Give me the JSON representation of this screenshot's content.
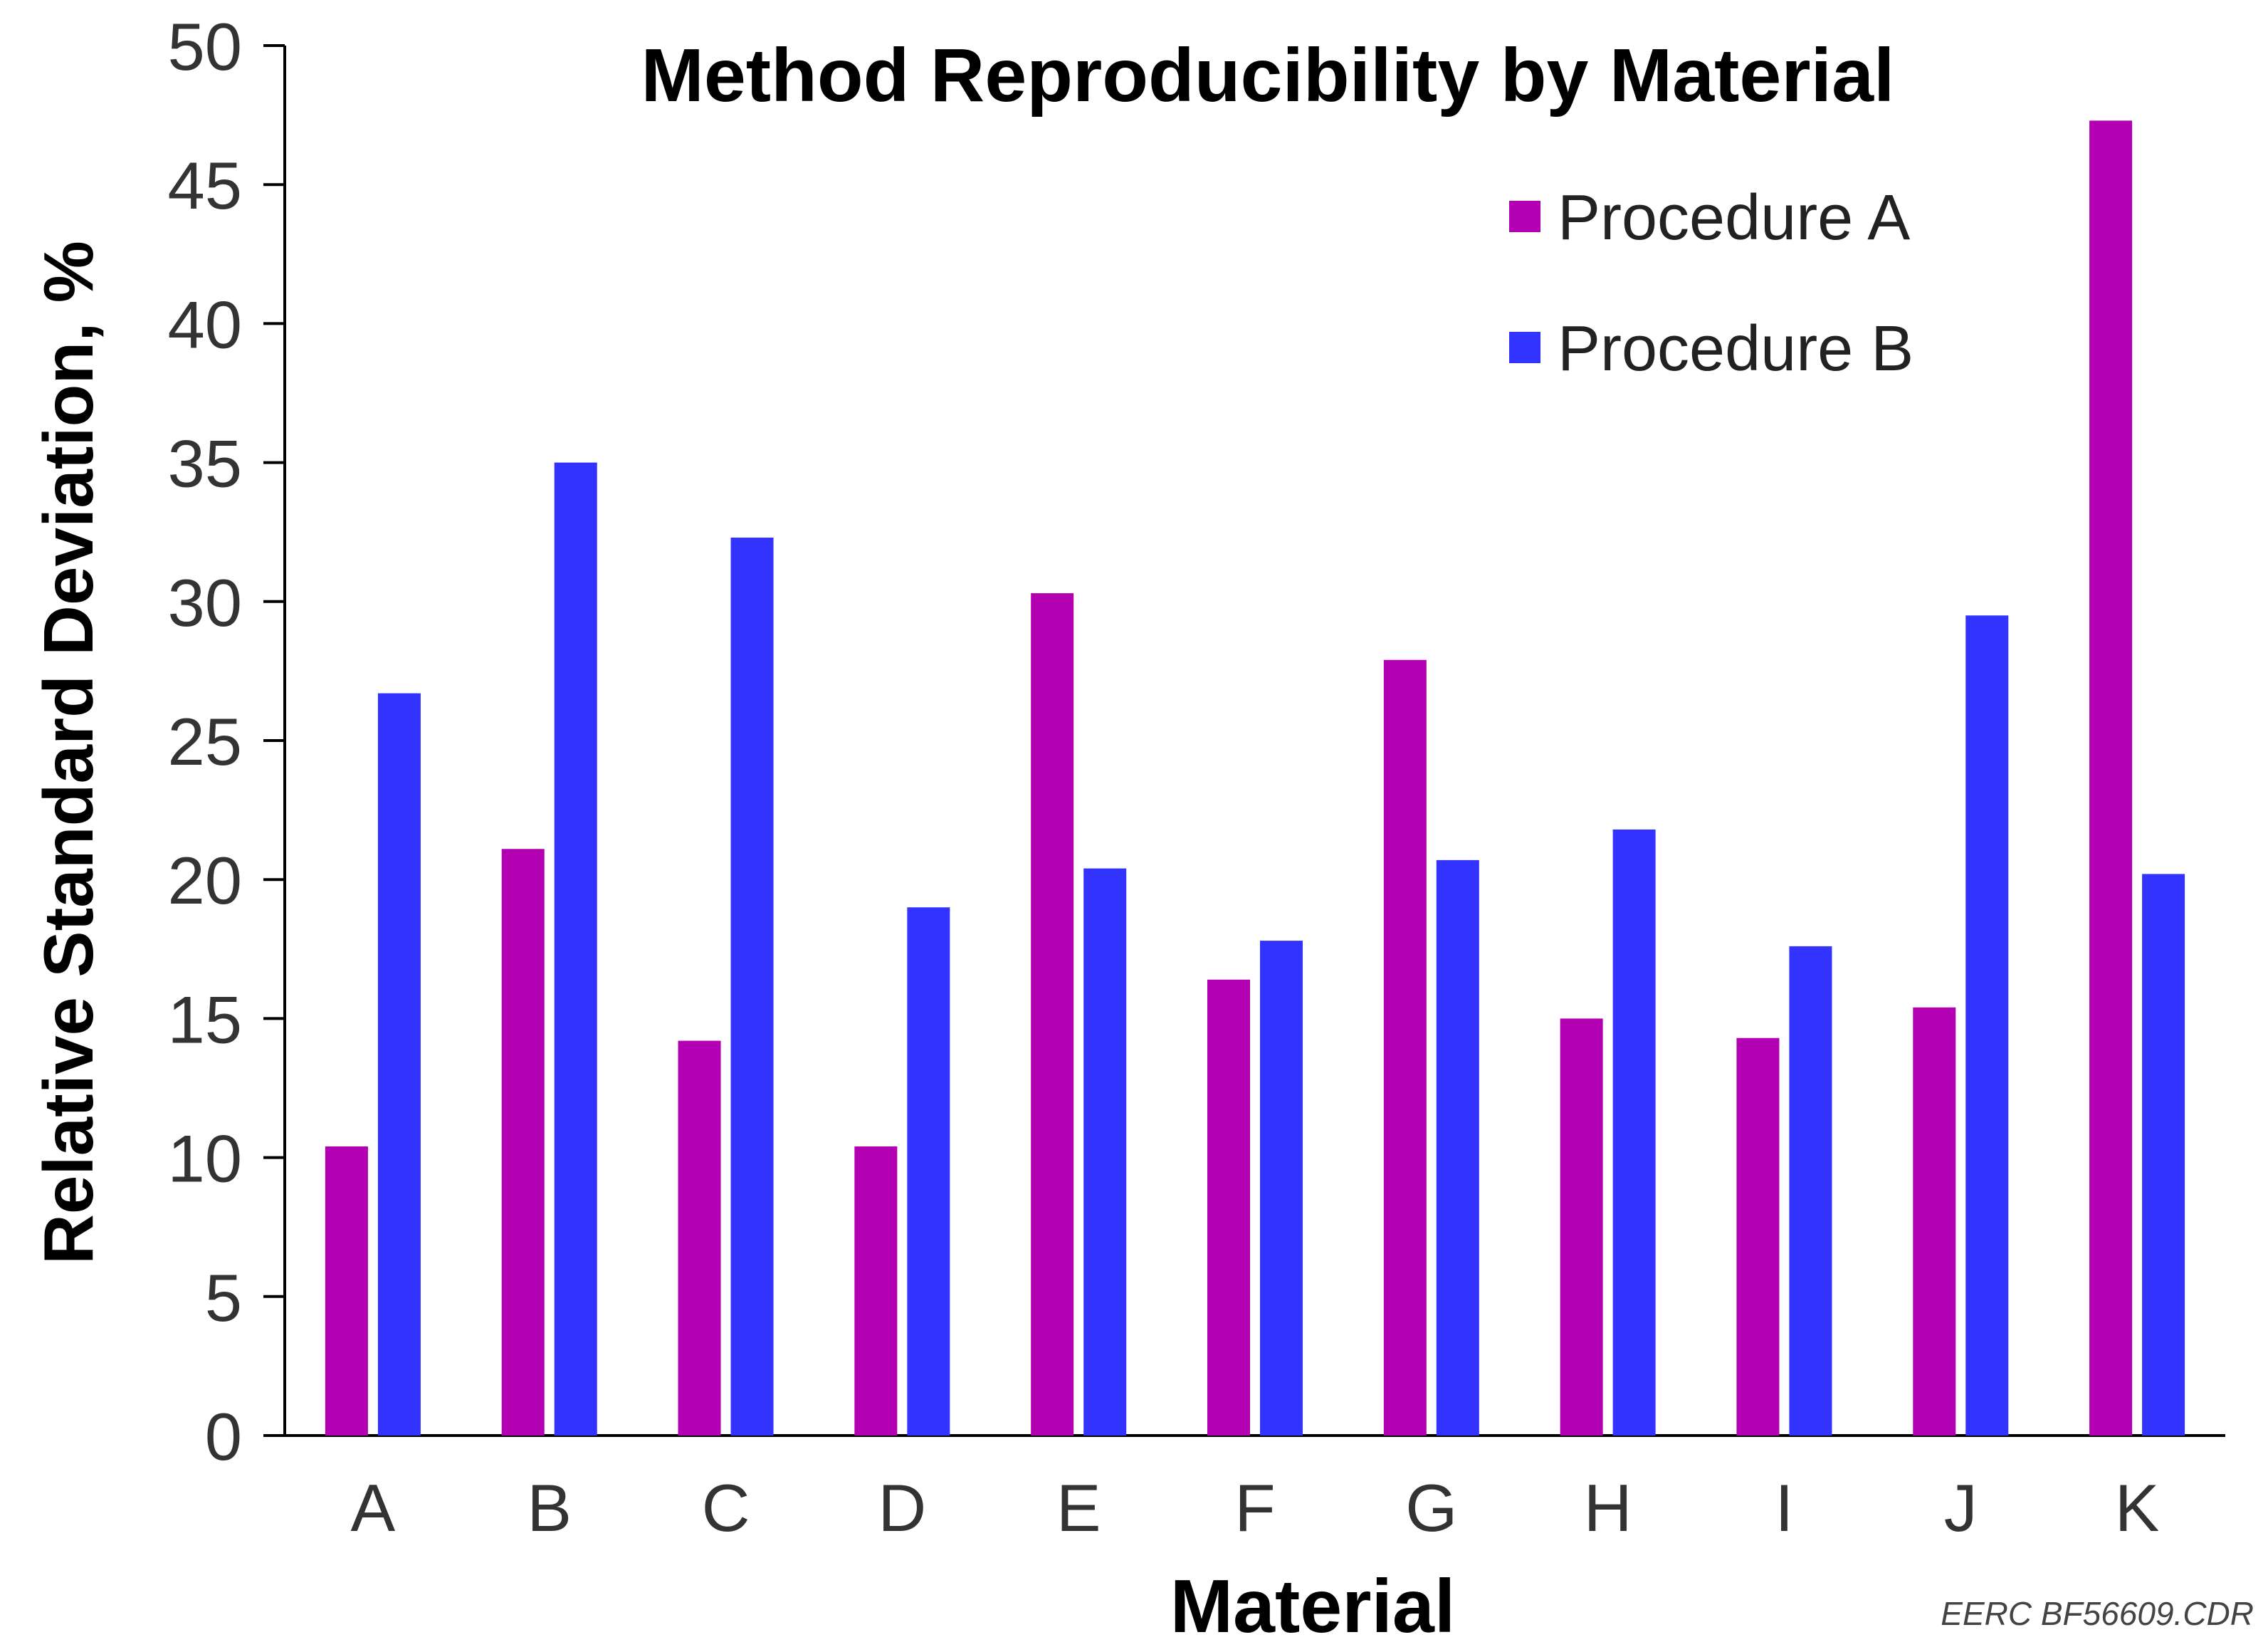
{
  "chart_data": {
    "type": "bar",
    "title": "Method Reproducibility by Material",
    "xlabel": "Material",
    "ylabel": "Relative Standard Deviation, %",
    "categories": [
      "A",
      "B",
      "C",
      "D",
      "E",
      "F",
      "G",
      "H",
      "I",
      "J",
      "K"
    ],
    "series": [
      {
        "name": "Procedure A",
        "color": "#b300b3",
        "values": [
          10.4,
          21.1,
          14.2,
          10.4,
          30.3,
          16.4,
          27.9,
          15.0,
          14.3,
          15.4,
          47.3
        ]
      },
      {
        "name": "Procedure B",
        "color": "#3333ff",
        "values": [
          26.7,
          35.0,
          32.3,
          19.0,
          20.4,
          17.8,
          20.7,
          21.8,
          17.6,
          29.5,
          20.2
        ]
      }
    ],
    "ylim": [
      0,
      50
    ],
    "yticks": [
      0,
      5,
      10,
      15,
      20,
      25,
      30,
      35,
      40,
      45,
      50
    ],
    "legend_position": "top-right",
    "grid": false
  },
  "credit": "EERC BF56609.CDR"
}
